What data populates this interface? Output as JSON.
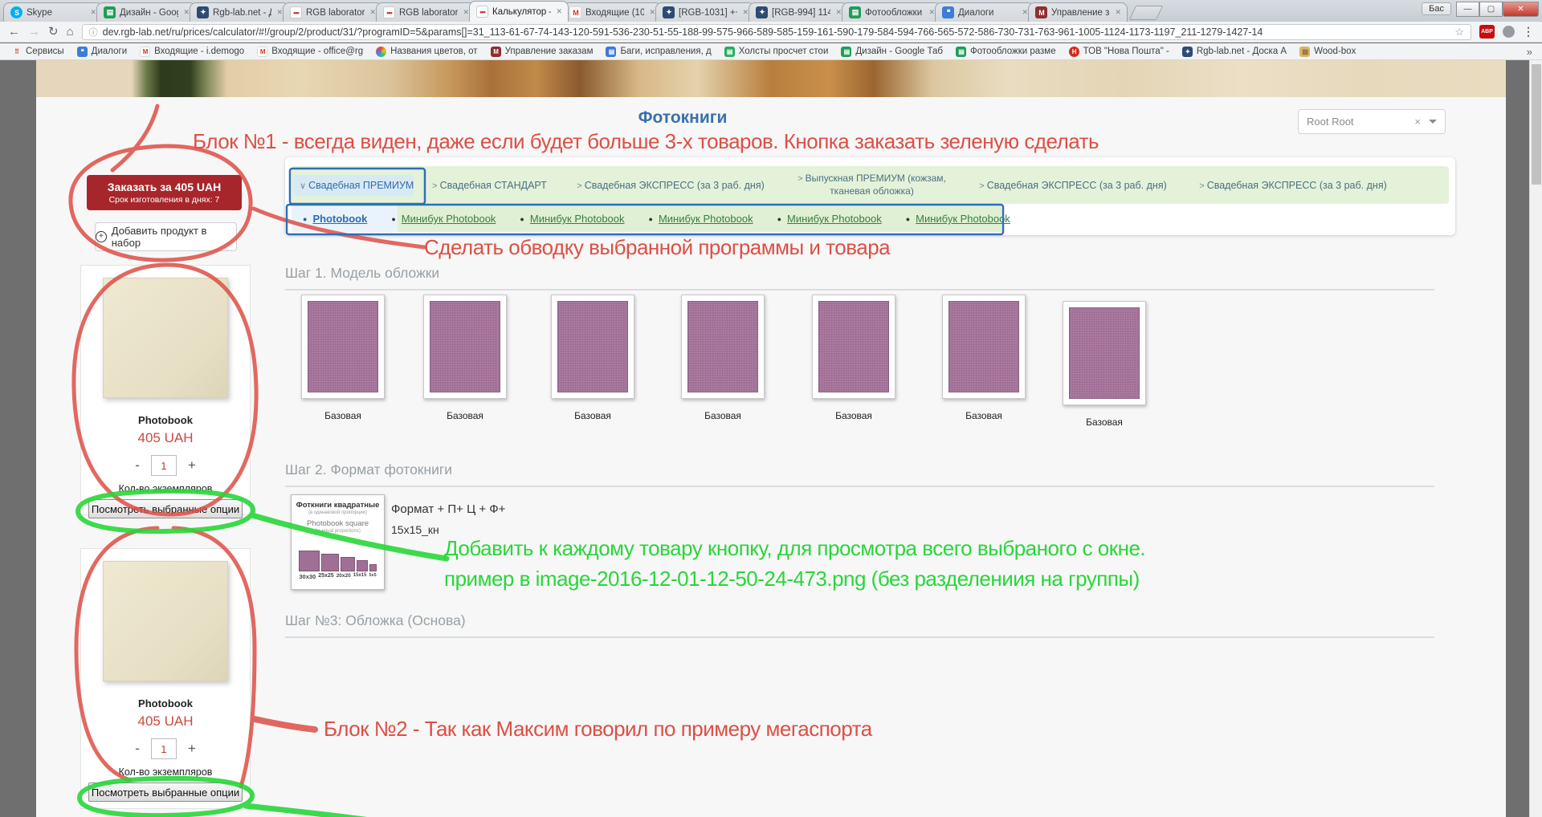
{
  "browser": {
    "tabs": [
      {
        "icon": "skype",
        "label": "Skype",
        "active": false
      },
      {
        "icon": "sheets",
        "label": "Дизайн - Goog",
        "active": false
      },
      {
        "icon": "tracker",
        "label": "Rgb-lab.net - Д",
        "active": false
      },
      {
        "icon": "rgbdots",
        "label": "RGB laboratory",
        "active": false
      },
      {
        "icon": "rgbdots",
        "label": "RGB laboratory",
        "active": false
      },
      {
        "icon": "rgbdots",
        "label": "Калькулятор –",
        "active": true
      },
      {
        "icon": "gmail",
        "label": "Входящие (10)",
        "active": false
      },
      {
        "icon": "tracker",
        "label": "[RGB-1031] ++",
        "active": false
      },
      {
        "icon": "tracker",
        "label": "[RGB-994] 114",
        "active": false
      },
      {
        "icon": "sheets",
        "label": "Фотообложки",
        "active": false
      },
      {
        "icon": "dialogs",
        "label": "Диалоги",
        "active": false
      },
      {
        "icon": "orders",
        "label": "Управление за",
        "active": false
      }
    ],
    "profile_badge": "Бас",
    "window_buttons": {
      "minimize": "—",
      "maximize": "▢",
      "close": "✕"
    },
    "url": "dev.rgb-lab.net/ru/prices/calculator/#!/group/2/product/31/?programID=5&params[]=31_113-61-67-74-143-120-591-536-230-51-55-188-99-575-966-589-585-159-161-590-179-584-594-766-565-572-586-730-731-763-961-1005-1124-1173-1197_211-1279-1427-14",
    "bookmarks": [
      {
        "icon": "apps",
        "label": "Сервисы"
      },
      {
        "icon": "dialogs",
        "label": "Диалоги"
      },
      {
        "icon": "gmail",
        "label": "Входящие - i.demogo"
      },
      {
        "icon": "gmail",
        "label": "Входящие - office@rg"
      },
      {
        "icon": "palette",
        "label": "Названия цветов, от"
      },
      {
        "icon": "orders",
        "label": "Управление заказам"
      },
      {
        "icon": "docs",
        "label": "Баги, исправления, д"
      },
      {
        "icon": "canvas",
        "label": "Холсты просчет стои"
      },
      {
        "icon": "sheets",
        "label": "Дизайн - Google Таб"
      },
      {
        "icon": "sheets",
        "label": "Фотообложки разме"
      },
      {
        "icon": "novaposhta",
        "label": "ТОВ \"Нова Пошта\" -"
      },
      {
        "icon": "tracker",
        "label": "Rgb-lab.net - Доска А"
      },
      {
        "icon": "folder",
        "label": "Wood-box"
      }
    ],
    "bookmarks_overflow": "»"
  },
  "icon_defs": {
    "skype": {
      "glyph": "S",
      "color": "#00aff0",
      "fg": "#fff",
      "shape": "circle"
    },
    "sheets": {
      "glyph": "▤",
      "color": "#1e9e57",
      "fg": "#fff"
    },
    "tracker": {
      "glyph": "✦",
      "color": "#2d4a72",
      "fg": "#fff"
    },
    "rgbdots": {
      "glyph": "•••",
      "color": "#ffffff",
      "fg": "#c0392b",
      "border": "#c9c9c9"
    },
    "gmail": {
      "glyph": "M",
      "color": "#ffffff",
      "fg": "#d93025",
      "border": "#d9d9d9"
    },
    "dialogs": {
      "glyph": "❝",
      "color": "#3b7dd8",
      "fg": "#fff"
    },
    "orders": {
      "glyph": "M",
      "color": "#8e2f2f",
      "fg": "#fff"
    },
    "apps": {
      "glyph": "⠿",
      "color": "transparent",
      "fg": "#d04437"
    },
    "palette": {
      "glyph": "",
      "color": "conic",
      "fg": "#fff",
      "shape": "circle"
    },
    "docs": {
      "glyph": "▤",
      "color": "#3b78d8",
      "fg": "#fff"
    },
    "canvas": {
      "glyph": "▤",
      "color": "#27ae60",
      "fg": "#fff"
    },
    "novaposhta": {
      "glyph": "Н",
      "color": "#d52b1e",
      "fg": "#fff",
      "shape": "circle"
    },
    "folder": {
      "glyph": "▨",
      "color": "#d9b36a",
      "fg": "#8a6a2a"
    }
  },
  "page": {
    "title": "Фотокниги",
    "root_select": {
      "value": "Root Root",
      "clear": "×"
    },
    "program_tabs": [
      {
        "label": "Свадебная ПРЕМИУМ",
        "prefix": "∨",
        "selected": true,
        "wrap": false
      },
      {
        "label": "Свадебная СТАНДАРТ",
        "prefix": ">",
        "selected": false,
        "wrap": false
      },
      {
        "label": "Свадебная ЭКСПРЕСС (за 3 раб. дня)",
        "prefix": ">",
        "selected": false,
        "wrap": false
      },
      {
        "label": "Выпускная ПРЕМИУМ (кожзам, тканевая обложка)",
        "prefix": ">",
        "selected": false,
        "wrap": true
      },
      {
        "label": "Свадебная ЭКСПРЕСС (за 3 раб. дня)",
        "prefix": ">",
        "selected": false,
        "wrap": false
      },
      {
        "label": "Свадебная ЭКСПРЕСС (за 3 раб. дня)",
        "prefix": ">",
        "selected": false,
        "wrap": false
      }
    ],
    "product_tabs": [
      {
        "label": "Photobook",
        "bullet": "●",
        "selected": true
      },
      {
        "label": "Минибук Photobook",
        "bullet": "●",
        "selected": false
      },
      {
        "label": "Минибук Photobook",
        "bullet": "●",
        "selected": false
      },
      {
        "label": "Минибук Photobook",
        "bullet": "●",
        "selected": false
      },
      {
        "label": "Минибук Photobook",
        "bullet": "●",
        "selected": false
      },
      {
        "label": "Минибук Photobook",
        "bullet": "●",
        "selected": false
      }
    ],
    "steps": [
      {
        "title": "Шаг 1. Модель обложки"
      },
      {
        "title": "Шаг 2. Формат фотокниги"
      },
      {
        "title": "Шаг №3: Обложка (Основа)"
      }
    ],
    "cover_options": [
      "Базовая",
      "Базовая",
      "Базовая",
      "Базовая",
      "Базовая",
      "Базовая",
      "Базовая"
    ],
    "format_option": {
      "card_title": "Фоткниги квадратные",
      "card_title_note": "(в одинаковой пропорции)",
      "card_subtitle": "Photobook square",
      "card_subtitle_note": "(in equal proportions)",
      "sizes": [
        "30x30",
        "25x25",
        "20x20",
        "15x15",
        "5x5"
      ],
      "selected_label": "Формат + П+ Ц + Ф+",
      "selected_value": "15x15_кн"
    },
    "sidebar": {
      "order_button": {
        "line1": "Заказать за 405 UAH",
        "line2": "Срок изготовления в днях: 7"
      },
      "add_button": "Добавить продукт в набор",
      "products": [
        {
          "name": "Photobook",
          "price": "405 UAH",
          "minus": "-",
          "plus": "+",
          "qty": "1",
          "qty_label": "Кол-во экземпляров",
          "options_button": "Посмотреть выбранные опции"
        },
        {
          "name": "Photobook",
          "price": "405 UAH",
          "minus": "-",
          "plus": "+",
          "qty": "1",
          "qty_label": "Кол-во экземпляров",
          "options_button": "Посмотреть выбранные опции"
        }
      ]
    }
  },
  "annotations": {
    "red1": "Блок №1 - всегда виден, даже если будет больше 3-х товаров. Кнопка заказать зеленую сделать",
    "red2": "Сделать обводку выбранной программы и товара",
    "red3": "Блок №2 - Так как Максим говорил по примеру мегаспорта",
    "green1": "Добавить к каждому товару кнопку, для просмотра всего выбраного с окне.",
    "green2": "пример в image-2016-12-01-12-50-24-473.png (без разделениия на группы)"
  },
  "colors": {
    "order_button_red": "#a7262b",
    "price_red": "#cb4a41",
    "annotation_red": "#dd4f45",
    "annotation_green": "#29d63a",
    "annotation_blue": "#2e6fb7",
    "title_blue": "#3a70ab",
    "program_band_green": "#e4f2da",
    "selected_tab_blue": "#d8e9f6",
    "swatch_purple": "#a6739b"
  }
}
